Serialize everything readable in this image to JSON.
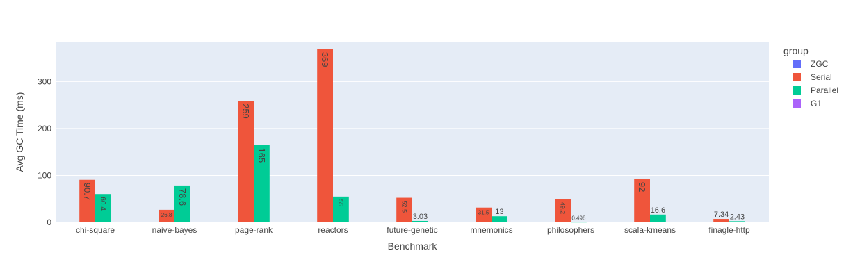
{
  "chart_data": {
    "type": "bar",
    "xlabel": "Benchmark",
    "ylabel": "Avg GC Time (ms)",
    "ylim": [
      0,
      385
    ],
    "yticks": [
      0,
      100,
      200,
      300
    ],
    "legend_title": "group",
    "legend_position": "right",
    "grid": true,
    "categories": [
      "chi-square",
      "naive-bayes",
      "page-rank",
      "reactors",
      "future-genetic",
      "mnemonics",
      "philosophers",
      "scala-kmeans",
      "finagle-http"
    ],
    "series": [
      {
        "name": "ZGC",
        "color": "#636efa",
        "values": [
          null,
          null,
          null,
          null,
          null,
          null,
          null,
          null,
          null
        ],
        "labels": [
          "",
          "",
          "",
          "",
          "",
          "",
          "",
          "",
          ""
        ]
      },
      {
        "name": "Serial",
        "color": "#ef553b",
        "values": [
          90.7,
          26.8,
          259,
          369,
          52.5,
          31.5,
          49.2,
          92,
          7.34
        ],
        "labels": [
          "90.7",
          "26.8",
          "259",
          "369",
          "52.5",
          "31.5",
          "49.2",
          "92",
          "7.34"
        ]
      },
      {
        "name": "Parallel",
        "color": "#00cc96",
        "values": [
          60.4,
          78.6,
          165,
          55,
          3.03,
          13,
          0.498,
          16.6,
          2.43
        ],
        "labels": [
          "60.4",
          "78.6",
          "165",
          "55",
          "3.03",
          "13",
          "0.498",
          "16.6",
          "2.43"
        ]
      },
      {
        "name": "G1",
        "color": "#ab63fa",
        "values": [
          null,
          null,
          null,
          null,
          null,
          null,
          null,
          null,
          null
        ],
        "labels": [
          "",
          "",
          "",
          "",
          "",
          "",
          "",
          "",
          ""
        ]
      }
    ]
  },
  "colors": {
    "plot_background": "#e5ecf6",
    "gridline": "#ffffff",
    "text": "#444444"
  }
}
